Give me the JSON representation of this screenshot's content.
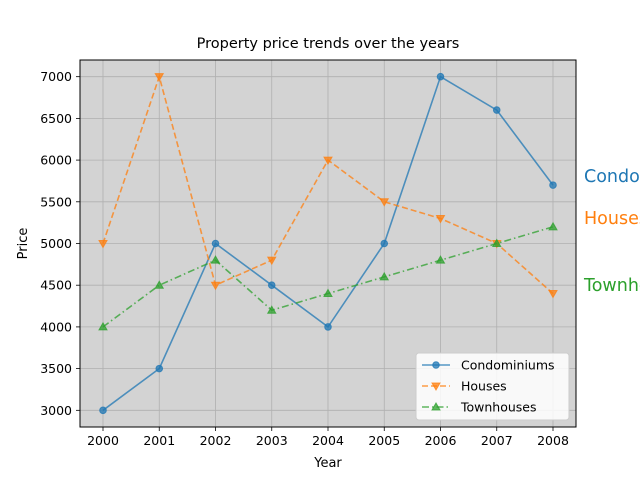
{
  "chart_data": {
    "type": "line",
    "title": "Property price trends over the years",
    "xlabel": "Year",
    "ylabel": "Price",
    "categories": [
      "2000",
      "2001",
      "2002",
      "2003",
      "2004",
      "2005",
      "2006",
      "2007",
      "2008"
    ],
    "yticks": [
      3000,
      3500,
      4000,
      4500,
      5000,
      5500,
      6000,
      6500,
      7000
    ],
    "ylim": [
      2800,
      7200
    ],
    "grid": true,
    "background": "#d3d3d3",
    "legend_position": "lower right",
    "series": [
      {
        "name": "Condominiums",
        "values": [
          3000,
          3500,
          5000,
          4500,
          4000,
          5000,
          7000,
          6600,
          5700
        ],
        "color": "#1f77b4",
        "marker": "circle",
        "line_style": "solid",
        "end_label": "Condominiums"
      },
      {
        "name": "Houses",
        "values": [
          5000,
          7000,
          4500,
          4800,
          6000,
          5500,
          5300,
          5000,
          4400
        ],
        "color": "#ff7f0e",
        "marker": "triangle-down",
        "line_style": "dashed",
        "end_label": "Houses"
      },
      {
        "name": "Townhouses",
        "values": [
          4000,
          4500,
          4800,
          4200,
          4400,
          4600,
          4800,
          5000,
          5200
        ],
        "color": "#2ca02c",
        "marker": "triangle-up",
        "line_style": "dashdot",
        "end_label": "Townhouses"
      }
    ]
  }
}
